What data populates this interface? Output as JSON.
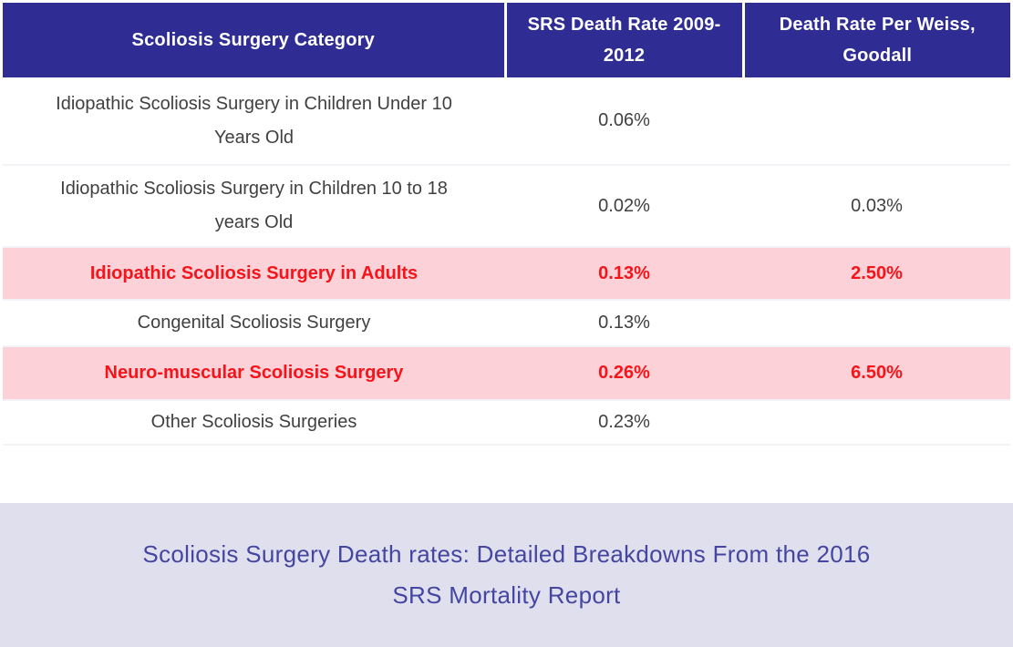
{
  "table": {
    "columns": [
      {
        "label": "Scoliosis Surgery Category"
      },
      {
        "label": "SRS Death Rate 2009-\n2012"
      },
      {
        "label": "Death Rate Per Weiss,\nGoodall"
      }
    ],
    "rows": [
      {
        "category": "Idiopathic Scoliosis Surgery in Children Under 10\nYears Old",
        "srs_rate": "0.06%",
        "weiss_rate": ""
      },
      {
        "category": "Idiopathic Scoliosis Surgery in Children 10 to 18\nyears Old",
        "srs_rate": "0.02%",
        "weiss_rate": "0.03%"
      },
      {
        "category": "Idiopathic Scoliosis Surgery in Adults",
        "srs_rate": "0.13%",
        "weiss_rate": "2.50%"
      },
      {
        "category": "Congenital Scoliosis Surgery",
        "srs_rate": "0.13%",
        "weiss_rate": ""
      },
      {
        "category": "Neuro-muscular Scoliosis Surgery",
        "srs_rate": "0.26%",
        "weiss_rate": "6.50%"
      },
      {
        "category": "Other Scoliosis Surgeries",
        "srs_rate": "0.23%",
        "weiss_rate": ""
      }
    ]
  },
  "caption": {
    "text": "Scoliosis Surgery Death rates: Detailed Breakdowns From the 2016\nSRS Mortality Report"
  },
  "colors": {
    "header_bg": "#2f2d94",
    "header_text": "#ffffff",
    "body_text": "#403f41",
    "highlight_bg": "#fcd1d8",
    "highlight_text": "#f41419",
    "caption_bg": "#e0dfee",
    "caption_text": "#4446a0"
  },
  "chart_data": {
    "type": "table",
    "title": "Scoliosis Surgery Death rates: Detailed Breakdowns From the 2016 SRS Mortality Report",
    "columns": [
      "Scoliosis Surgery Category",
      "SRS Death Rate 2009-2012",
      "Death Rate Per Weiss, Goodall"
    ],
    "rows": [
      [
        "Idiopathic Scoliosis Surgery in Children Under 10 Years Old",
        "0.06%",
        ""
      ],
      [
        "Idiopathic Scoliosis Surgery in Children 10 to 18 years Old",
        "0.02%",
        "0.03%"
      ],
      [
        "Idiopathic Scoliosis Surgery in Adults",
        "0.13%",
        "2.50%"
      ],
      [
        "Congenital Scoliosis Surgery",
        "0.13%",
        ""
      ],
      [
        "Neuro-muscular Scoliosis Surgery",
        "0.26%",
        "6.50%"
      ],
      [
        "Other Scoliosis Surgeries",
        "0.23%",
        ""
      ]
    ],
    "highlighted_rows": [
      2,
      4
    ],
    "highlight_meaning": "rows shown in red on pink background"
  }
}
